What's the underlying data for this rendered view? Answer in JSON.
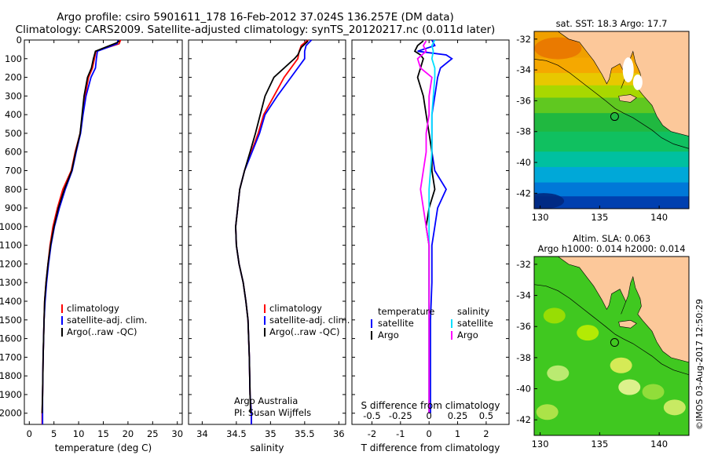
{
  "header": {
    "line1": "Argo profile: csiro 5901611_178 16-Feb-2012 37.024S 136.257E (DM data)",
    "line2": "Climatology: CARS2009. Satellite-adjusted climatology: synTS_20120217.nc (0.011d later)"
  },
  "footer_vertical": "©IMOS 03-Aug-2017 12:50:29",
  "colors": {
    "climatology": "#ff0000",
    "satellite": "#0000ff",
    "argo": "#000000",
    "sal_satellite": "#00e0ff",
    "sal_argo": "#ff00ff",
    "land": "#fcc89a"
  },
  "chart_data": [
    {
      "id": "temperature",
      "type": "line",
      "xlabel": "temperature (deg C)",
      "xlim": [
        -1,
        31
      ],
      "xticks": [
        0,
        5,
        10,
        15,
        20,
        25,
        30
      ],
      "ylim": [
        2060,
        0
      ],
      "yticks": [
        0,
        100,
        200,
        300,
        400,
        500,
        600,
        700,
        800,
        900,
        1000,
        1100,
        1200,
        1300,
        1400,
        1500,
        1600,
        1700,
        1800,
        1900,
        2000
      ],
      "legend": [
        "climatology",
        "satellite-adj. clim.",
        "Argo(..raw -QC)"
      ],
      "series": [
        {
          "name": "climatology",
          "color": "#ff0000",
          "points": [
            [
              18.5,
              0
            ],
            [
              18.2,
              20
            ],
            [
              13.5,
              60
            ],
            [
              13.2,
              100
            ],
            [
              12.8,
              150
            ],
            [
              12.0,
              200
            ],
            [
              11.3,
              300
            ],
            [
              10.8,
              400
            ],
            [
              10.3,
              500
            ],
            [
              9.3,
              600
            ],
            [
              8.5,
              700
            ],
            [
              6.8,
              800
            ],
            [
              5.7,
              900
            ],
            [
              4.8,
              1000
            ],
            [
              4.2,
              1100
            ],
            [
              3.8,
              1200
            ],
            [
              3.4,
              1300
            ],
            [
              3.1,
              1400
            ],
            [
              3.0,
              1500
            ],
            [
              2.8,
              1700
            ],
            [
              2.7,
              1900
            ],
            [
              2.6,
              2000
            ],
            [
              2.6,
              2060
            ]
          ]
        },
        {
          "name": "satellite-adj. clim.",
          "color": "#0000ff",
          "points": [
            [
              18.0,
              0
            ],
            [
              17.8,
              20
            ],
            [
              13.8,
              60
            ],
            [
              13.6,
              100
            ],
            [
              13.4,
              150
            ],
            [
              12.5,
              200
            ],
            [
              11.5,
              300
            ],
            [
              10.9,
              400
            ],
            [
              10.4,
              500
            ],
            [
              9.5,
              600
            ],
            [
              8.7,
              700
            ],
            [
              7.3,
              800
            ],
            [
              6.1,
              900
            ],
            [
              5.1,
              1000
            ],
            [
              4.4,
              1100
            ],
            [
              3.9,
              1200
            ],
            [
              3.5,
              1300
            ],
            [
              3.2,
              1400
            ],
            [
              3.0,
              1500
            ],
            [
              2.8,
              1700
            ],
            [
              2.7,
              1900
            ],
            [
              2.7,
              2000
            ],
            [
              2.7,
              2060
            ]
          ]
        },
        {
          "name": "Argo(..raw -QC)",
          "color": "#000000",
          "points": [
            [
              18.3,
              5
            ],
            [
              17.7,
              15
            ],
            [
              13.4,
              60
            ],
            [
              13.0,
              100
            ],
            [
              12.6,
              150
            ],
            [
              11.8,
              200
            ],
            [
              11.1,
              300
            ],
            [
              10.7,
              400
            ],
            [
              10.3,
              500
            ],
            [
              9.4,
              600
            ],
            [
              8.6,
              700
            ],
            [
              7.1,
              800
            ],
            [
              5.9,
              900
            ],
            [
              5.0,
              1000
            ],
            [
              4.3,
              1100
            ],
            [
              3.8,
              1200
            ],
            [
              3.4,
              1300
            ],
            [
              3.1,
              1400
            ],
            [
              3.0,
              1500
            ],
            [
              2.8,
              1700
            ],
            [
              2.7,
              1900
            ],
            [
              2.6,
              2000
            ]
          ]
        }
      ]
    },
    {
      "id": "salinity",
      "type": "line",
      "xlabel": "salinity",
      "xlim": [
        33.8,
        36.1
      ],
      "xticks": [
        34,
        34.5,
        35,
        35.5,
        36
      ],
      "ylim": [
        2060,
        0
      ],
      "legend": [
        "climatology",
        "satellite-adj. clim.",
        "Argo(..raw -QC)"
      ],
      "annotation": [
        "Argo Australia",
        "PI: Susan Wijffels"
      ],
      "series": [
        {
          "name": "climatology",
          "color": "#ff0000",
          "points": [
            [
              35.55,
              0
            ],
            [
              35.45,
              30
            ],
            [
              35.42,
              60
            ],
            [
              35.4,
              100
            ],
            [
              35.2,
              200
            ],
            [
              35.05,
              300
            ],
            [
              34.9,
              400
            ],
            [
              34.82,
              500
            ],
            [
              34.72,
              600
            ],
            [
              34.62,
              700
            ],
            [
              34.55,
              800
            ],
            [
              34.52,
              900
            ],
            [
              34.49,
              1000
            ],
            [
              34.5,
              1100
            ],
            [
              34.54,
              1200
            ],
            [
              34.6,
              1300
            ],
            [
              34.64,
              1400
            ],
            [
              34.67,
              1500
            ],
            [
              34.69,
              1700
            ],
            [
              34.7,
              1900
            ],
            [
              34.72,
              2000
            ],
            [
              34.72,
              2060
            ]
          ]
        },
        {
          "name": "satellite-adj. clim.",
          "color": "#0000ff",
          "points": [
            [
              35.6,
              0
            ],
            [
              35.52,
              30
            ],
            [
              35.5,
              60
            ],
            [
              35.5,
              100
            ],
            [
              35.3,
              200
            ],
            [
              35.1,
              300
            ],
            [
              34.92,
              400
            ],
            [
              34.84,
              500
            ],
            [
              34.73,
              600
            ],
            [
              34.62,
              700
            ],
            [
              34.55,
              800
            ],
            [
              34.52,
              900
            ],
            [
              34.49,
              1000
            ],
            [
              34.5,
              1100
            ],
            [
              34.54,
              1200
            ],
            [
              34.6,
              1300
            ],
            [
              34.64,
              1400
            ],
            [
              34.67,
              1500
            ],
            [
              34.69,
              1700
            ],
            [
              34.7,
              1900
            ],
            [
              34.72,
              2000
            ],
            [
              34.72,
              2060
            ]
          ]
        },
        {
          "name": "Argo(..raw -QC)",
          "color": "#000000",
          "points": [
            [
              35.55,
              5
            ],
            [
              35.45,
              40
            ],
            [
              35.4,
              80
            ],
            [
              35.35,
              100
            ],
            [
              35.05,
              200
            ],
            [
              34.92,
              300
            ],
            [
              34.85,
              400
            ],
            [
              34.78,
              500
            ],
            [
              34.7,
              600
            ],
            [
              34.62,
              700
            ],
            [
              34.55,
              800
            ],
            [
              34.52,
              900
            ],
            [
              34.49,
              1000
            ],
            [
              34.5,
              1100
            ],
            [
              34.54,
              1200
            ],
            [
              34.6,
              1300
            ],
            [
              34.64,
              1400
            ],
            [
              34.67,
              1500
            ],
            [
              34.69,
              1700
            ],
            [
              34.7,
              1900
            ],
            [
              34.71,
              2000
            ]
          ]
        }
      ]
    },
    {
      "id": "difference",
      "type": "line",
      "xlabel": "T difference from climatology",
      "xlabel_top": "S difference from climatology",
      "xlim": [
        -2.7,
        2.8
      ],
      "xticks": [
        -2,
        -1,
        0,
        1,
        2
      ],
      "xticks_s": [
        "-0.5",
        "-0.25",
        "0",
        "0.25",
        "0.5"
      ],
      "ylim": [
        2060,
        0
      ],
      "legend_left_title": "temperature",
      "legend_right_title": "salinity",
      "legend_left": [
        "satellite",
        "Argo"
      ],
      "legend_right": [
        "satellite",
        "Argo"
      ],
      "series": [
        {
          "name": "temperature satellite",
          "color": "#0000ff",
          "points": [
            [
              0.1,
              0
            ],
            [
              0.2,
              30
            ],
            [
              -0.4,
              60
            ],
            [
              0.6,
              80
            ],
            [
              0.8,
              100
            ],
            [
              0.4,
              150
            ],
            [
              0.3,
              200
            ],
            [
              0.2,
              300
            ],
            [
              0.1,
              400
            ],
            [
              0.1,
              500
            ],
            [
              0.1,
              600
            ],
            [
              0.2,
              700
            ],
            [
              0.6,
              800
            ],
            [
              0.3,
              900
            ],
            [
              0.2,
              1000
            ],
            [
              0.1,
              1100
            ],
            [
              0.1,
              1200
            ],
            [
              0.1,
              1300
            ],
            [
              0.05,
              1500
            ],
            [
              0.05,
              1700
            ],
            [
              0.05,
              1900
            ],
            [
              0.05,
              2000
            ]
          ]
        },
        {
          "name": "temperature Argo",
          "color": "#000000",
          "points": [
            [
              -0.2,
              5
            ],
            [
              -0.4,
              30
            ],
            [
              -0.5,
              60
            ],
            [
              -0.3,
              80
            ],
            [
              -0.2,
              100
            ],
            [
              -0.3,
              150
            ],
            [
              -0.4,
              200
            ],
            [
              -0.2,
              300
            ],
            [
              -0.1,
              400
            ],
            [
              0.0,
              500
            ],
            [
              0.1,
              600
            ],
            [
              0.1,
              700
            ],
            [
              0.2,
              800
            ],
            [
              0.0,
              900
            ],
            [
              -0.1,
              1000
            ],
            [
              0.0,
              1100
            ],
            [
              0.0,
              1200
            ],
            [
              0.0,
              1300
            ],
            [
              0.0,
              1500
            ],
            [
              0.0,
              1700
            ],
            [
              0.0,
              1900
            ],
            [
              0.0,
              2000
            ]
          ]
        },
        {
          "name": "salinity satellite",
          "color": "#00e0ff",
          "points": [
            [
              0.2,
              0
            ],
            [
              0.1,
              30
            ],
            [
              0.15,
              60
            ],
            [
              0.1,
              100
            ],
            [
              0.2,
              150
            ],
            [
              0.2,
              200
            ],
            [
              0.15,
              300
            ],
            [
              0.1,
              400
            ],
            [
              0.1,
              500
            ],
            [
              0.1,
              600
            ],
            [
              0.05,
              700
            ],
            [
              0.0,
              800
            ],
            [
              0.0,
              900
            ],
            [
              0.0,
              1000
            ],
            [
              0.0,
              1100
            ],
            [
              0.0,
              1200
            ],
            [
              0.0,
              1300
            ],
            [
              0.0,
              1500
            ],
            [
              0.0,
              1700
            ],
            [
              0.0,
              1900
            ],
            [
              0.0,
              2000
            ]
          ]
        },
        {
          "name": "salinity Argo",
          "color": "#ff00ff",
          "points": [
            [
              -0.1,
              5
            ],
            [
              -0.2,
              30
            ],
            [
              -0.1,
              60
            ],
            [
              -0.4,
              100
            ],
            [
              -0.3,
              150
            ],
            [
              0.1,
              200
            ],
            [
              0.0,
              300
            ],
            [
              0.0,
              400
            ],
            [
              -0.1,
              500
            ],
            [
              -0.1,
              600
            ],
            [
              -0.2,
              700
            ],
            [
              -0.3,
              800
            ],
            [
              -0.2,
              900
            ],
            [
              -0.1,
              1000
            ],
            [
              0.0,
              1100
            ],
            [
              0.0,
              1200
            ],
            [
              0.0,
              1300
            ],
            [
              0.0,
              1500
            ],
            [
              0.0,
              1700
            ],
            [
              0.0,
              1900
            ],
            [
              0.0,
              2000
            ]
          ]
        }
      ]
    },
    {
      "id": "sst_map",
      "type": "heatmap",
      "title": "sat. SST: 18.3 Argo: 17.7",
      "xlim": [
        129.5,
        142.5
      ],
      "ylim": [
        -43,
        -31.5
      ],
      "xticks": [
        130,
        135,
        140
      ],
      "yticks": [
        -32,
        -34,
        -36,
        -38,
        -40,
        -42
      ],
      "marker": [
        136.257,
        -37.024
      ]
    },
    {
      "id": "sla_map",
      "type": "heatmap",
      "title": [
        "Altim. SLA: 0.063",
        "Argo h1000: 0.014 h2000: 0.014"
      ],
      "xlim": [
        129.5,
        142.5
      ],
      "ylim": [
        -43,
        -31.5
      ],
      "xticks": [
        130,
        135,
        140
      ],
      "yticks": [
        -32,
        -34,
        -36,
        -38,
        -40,
        -42
      ],
      "marker": [
        136.257,
        -37.024
      ]
    }
  ]
}
